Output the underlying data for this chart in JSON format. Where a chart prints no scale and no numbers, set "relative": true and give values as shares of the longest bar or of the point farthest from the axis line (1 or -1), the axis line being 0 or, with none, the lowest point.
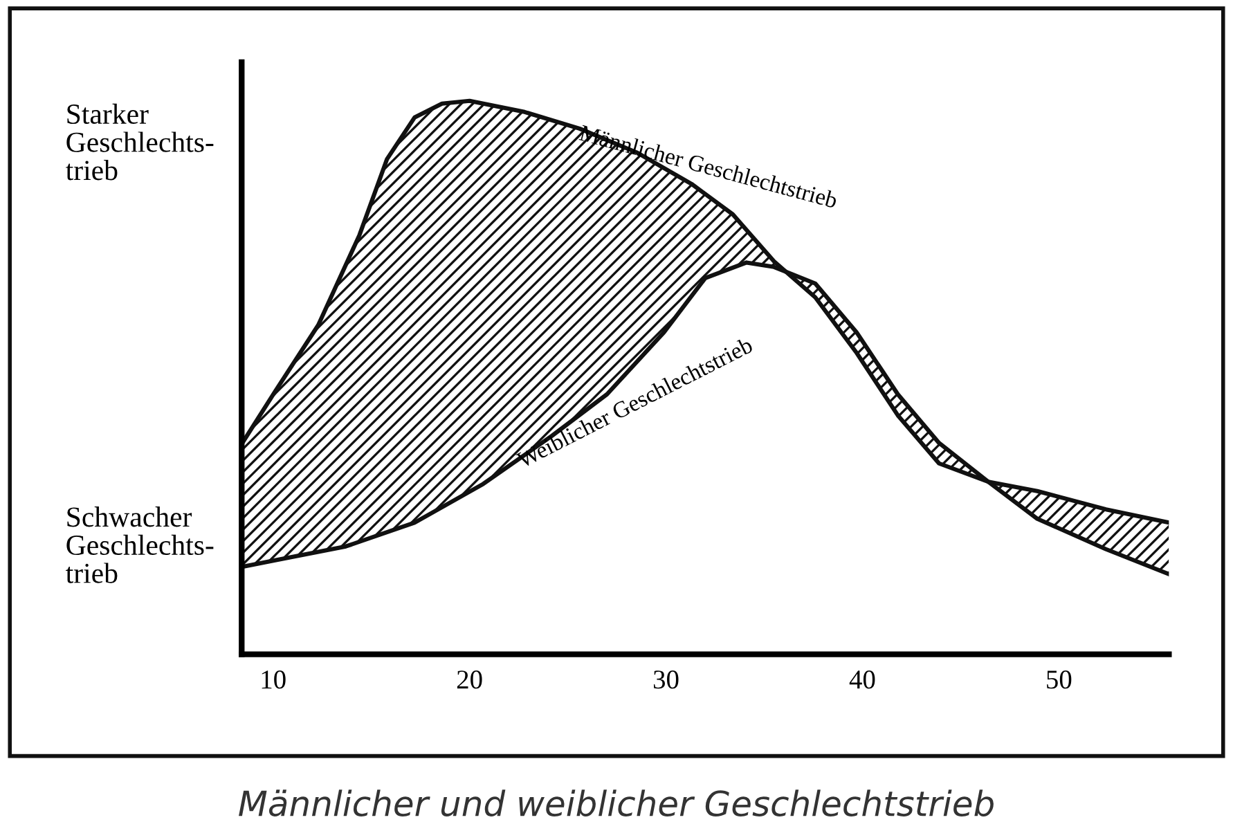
{
  "chart_data": {
    "type": "line",
    "title": "Männlicher und weiblicher Geschlechtstrieb",
    "relative": true,
    "xlim": [
      8.4,
      55.6
    ],
    "xticks": [
      10,
      20,
      30,
      40,
      50
    ],
    "grid": false,
    "legend": false,
    "marker": "none",
    "line_style": "solid",
    "annotations": [
      "Starker\nGeschlechts-\ntrieb",
      "Schwacher\nGeschlechts-\ntrieb"
    ],
    "series": [
      {
        "name": "Männlicher Geschlechtstrieb",
        "color": "#111111",
        "x": [
          8.4,
          10.1,
          12.3,
          14.4,
          15.8,
          17.2,
          18.6,
          20.0,
          22.8,
          25.6,
          28.5,
          31.3,
          33.4,
          35.5,
          37.6,
          39.7,
          41.8,
          43.9,
          46.4,
          48.9,
          52.4,
          55.6
        ],
        "values": [
          0.38,
          0.475,
          0.595,
          0.758,
          0.895,
          0.97,
          0.995,
          1.0,
          0.98,
          0.95,
          0.907,
          0.85,
          0.795,
          0.71,
          0.645,
          0.545,
          0.432,
          0.345,
          0.312,
          0.295,
          0.262,
          0.238
        ]
      },
      {
        "name": "Weiblicher Geschlechtstrieb",
        "color": "#111111",
        "x": [
          8.4,
          10.1,
          13.7,
          17.2,
          20.7,
          24.2,
          27.0,
          29.9,
          32.0,
          34.1,
          35.5,
          37.6,
          39.7,
          41.8,
          43.9,
          46.4,
          48.9,
          52.4,
          55.6
        ],
        "values": [
          0.158,
          0.17,
          0.195,
          0.238,
          0.308,
          0.395,
          0.47,
          0.582,
          0.68,
          0.708,
          0.7,
          0.67,
          0.582,
          0.47,
          0.382,
          0.312,
          0.245,
          0.19,
          0.145
        ]
      }
    ]
  }
}
